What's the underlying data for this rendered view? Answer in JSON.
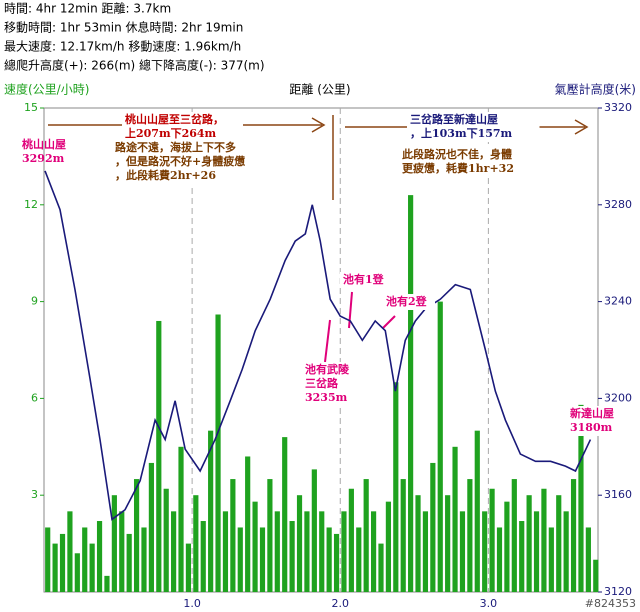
{
  "header": [
    "時間: 4hr 12min  距離: 3.7km",
    "移動時間: 1hr 53min  休息時間: 2hr 19min",
    "最大速度: 12.17km/h  移動速度: 1.96km/h",
    "總爬升高度(+): 266(m)  總下降高度(-): 377(m)"
  ],
  "chart_data": {
    "type": "bar-line",
    "ylabel": "速度(公里/小時)",
    "xlabel": "距離 (公里)",
    "y2label": "氣壓計高度(米)",
    "xlim": [
      0,
      3.74
    ],
    "xticks": [
      {
        "value": 1,
        "label": "1.0"
      },
      {
        "value": 2,
        "label": "2.0"
      },
      {
        "value": 3,
        "label": "3.0"
      }
    ],
    "ylim": [
      0,
      15
    ],
    "yticks": [
      3,
      6,
      9,
      12,
      15
    ],
    "y2lim": [
      3120,
      3320
    ],
    "y2ticks": [
      3120,
      3160,
      3200,
      3240,
      3280,
      3320
    ],
    "grid": true,
    "series": [
      {
        "type": "bar",
        "color": "#1fa21f",
        "x": [
          0.025,
          0.075,
          0.125,
          0.175,
          0.225,
          0.275,
          0.325,
          0.375,
          0.425,
          0.475,
          0.525,
          0.575,
          0.625,
          0.675,
          0.725,
          0.775,
          0.825,
          0.875,
          0.925,
          0.975,
          1.025,
          1.075,
          1.125,
          1.175,
          1.225,
          1.275,
          1.325,
          1.375,
          1.425,
          1.475,
          1.525,
          1.575,
          1.625,
          1.675,
          1.725,
          1.775,
          1.825,
          1.875,
          1.925,
          1.975,
          2.025,
          2.075,
          2.125,
          2.175,
          2.225,
          2.275,
          2.325,
          2.375,
          2.425,
          2.475,
          2.525,
          2.575,
          2.625,
          2.675,
          2.725,
          2.775,
          2.825,
          2.875,
          2.925,
          2.975,
          3.025,
          3.075,
          3.125,
          3.175,
          3.225,
          3.275,
          3.325,
          3.375,
          3.425,
          3.475,
          3.525,
          3.575,
          3.625,
          3.675,
          3.725
        ],
        "values": [
          2,
          1.5,
          1.8,
          2.5,
          1.2,
          2,
          1.5,
          2.2,
          0.5,
          3,
          2.5,
          1.8,
          3.5,
          2,
          4,
          8.4,
          3.2,
          2.5,
          4.5,
          1.5,
          3,
          2.2,
          5,
          8.6,
          2.5,
          3.5,
          2,
          4.2,
          2.8,
          2,
          3.5,
          2.5,
          4.8,
          2.2,
          3,
          2.5,
          3.8,
          2.5,
          2,
          1.8,
          2.5,
          3.2,
          2,
          3.5,
          2.5,
          1.5,
          2.8,
          6.5,
          3.5,
          12.3,
          3,
          2.5,
          4,
          9,
          3,
          4.5,
          2.5,
          3.5,
          5,
          2.5,
          3.2,
          2,
          2.8,
          3.5,
          2.2,
          3,
          2.5,
          3.2,
          2,
          3,
          2.5,
          3.5,
          5.8,
          2,
          1
        ]
      },
      {
        "type": "line",
        "axis": "y2",
        "color": "#1a1a7a",
        "x": [
          0.007,
          0.108,
          0.209,
          0.311,
          0.378,
          0.459,
          0.547,
          0.649,
          0.75,
          0.818,
          0.885,
          0.953,
          1.054,
          1.155,
          1.257,
          1.338,
          1.426,
          1.527,
          1.628,
          1.696,
          1.764,
          1.811,
          1.865,
          1.932,
          2.0,
          2.068,
          2.149,
          2.236,
          2.304,
          2.372,
          2.439,
          2.507,
          2.574,
          2.676,
          2.777,
          2.878,
          2.98,
          3.047,
          3.115,
          3.216,
          3.318,
          3.42,
          3.52,
          3.588,
          3.689
        ],
        "values": [
          3294,
          3278,
          3245,
          3208,
          3183,
          3150,
          3154,
          3166,
          3191,
          3183,
          3199,
          3179,
          3170,
          3183,
          3199,
          3212,
          3228,
          3241,
          3257,
          3265,
          3268,
          3280,
          3265,
          3241,
          3234,
          3232,
          3224,
          3232,
          3228,
          3203,
          3224,
          3232,
          3237,
          3241,
          3247,
          3245,
          3220,
          3203,
          3191,
          3177,
          3174,
          3174,
          3172,
          3170,
          3183
        ]
      }
    ],
    "annotations": [
      {
        "lines": [
          "桃山山屋",
          "3292m"
        ]
      },
      {
        "lines": [
          "桃山山屋至三岔路，",
          "上207m下264m"
        ]
      },
      {
        "lines": [
          "路途不遠，海拔上下不多",
          "，但是路況不好+身體疲憊",
          "，此段耗費2hr+26"
        ]
      },
      {
        "lines": [
          "池有1登"
        ]
      },
      {
        "lines": [
          "池有2登"
        ]
      },
      {
        "lines": [
          "池有武陵",
          "三岔路",
          "3235m"
        ]
      },
      {
        "lines": [
          "三岔路至新達山屋",
          "，上103m下157m"
        ]
      },
      {
        "lines": [
          "此段路況也不佳，身體",
          "更疲憊，耗費1hr+32"
        ]
      },
      {
        "lines": [
          "新達山屋",
          "3180m"
        ]
      }
    ],
    "watermark": "#824353"
  }
}
